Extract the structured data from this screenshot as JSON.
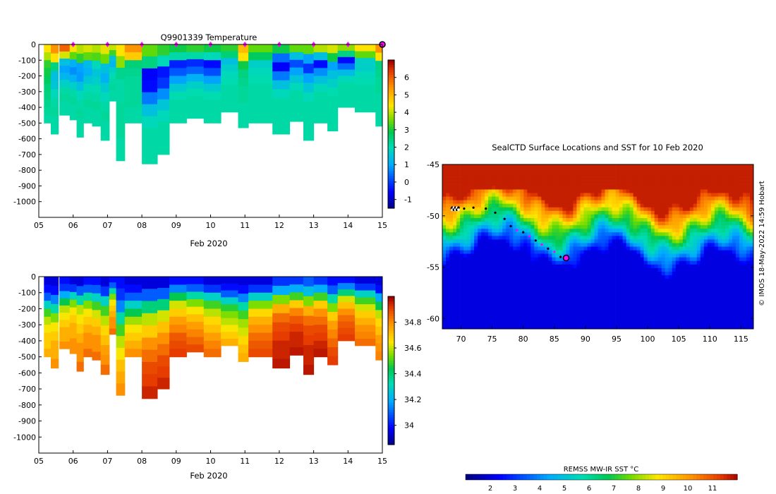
{
  "chart_data": [
    {
      "type": "heatmap",
      "title": "Q9901339  Temperature",
      "xlabel": "Feb 2020",
      "ylabel": "",
      "x_ticks": [
        "05",
        "06",
        "07",
        "08",
        "09",
        "10",
        "11",
        "12",
        "13",
        "14",
        "15"
      ],
      "xlim": [
        5,
        15
      ],
      "y_ticks": [
        0,
        -100,
        -200,
        -300,
        -400,
        -500,
        -600,
        -700,
        -800,
        -900,
        -1000
      ],
      "ylim": [
        -1100,
        0
      ],
      "colorbar": {
        "ticks": [
          -1,
          0,
          1,
          2,
          3,
          4,
          5,
          6
        ],
        "range": [
          -1.5,
          7
        ]
      },
      "profiles": [
        {
          "x": 5.15,
          "w": 0.22,
          "depth": 500,
          "temps": [
            4.5,
            4.0,
            3.2,
            3.0,
            2.8,
            2.6,
            2.5,
            2.4,
            2.3,
            2.2
          ]
        },
        {
          "x": 5.35,
          "w": 0.22,
          "depth": 570,
          "temps": [
            5.5,
            4.5,
            2.5,
            1.5,
            1.6,
            2.0,
            2.2,
            2.3,
            2.2,
            2.2
          ]
        },
        {
          "x": 5.6,
          "w": 0.3,
          "depth": 450,
          "temps": [
            6.0,
            4.2,
            1.5,
            1.0,
            1.3,
            1.8,
            2.2,
            2.3,
            2.2,
            2.2
          ]
        },
        {
          "x": 5.9,
          "w": 0.25,
          "depth": 480,
          "temps": [
            4.5,
            3.5,
            1.2,
            0.8,
            1.2,
            1.8,
            2.2,
            2.3,
            2.2,
            2.2
          ]
        },
        {
          "x": 6.1,
          "w": 0.2,
          "depth": 590,
          "temps": [
            4.0,
            3.2,
            1.0,
            0.9,
            1.5,
            2.0,
            2.2,
            2.3,
            2.2,
            2.2
          ]
        },
        {
          "x": 6.3,
          "w": 0.25,
          "depth": 500,
          "temps": [
            4.2,
            3.5,
            1.4,
            1.2,
            1.6,
            2.0,
            2.2,
            2.3,
            2.2,
            2.2
          ]
        },
        {
          "x": 6.55,
          "w": 0.25,
          "depth": 520,
          "temps": [
            4.0,
            3.4,
            2.0,
            1.6,
            1.8,
            2.1,
            2.2,
            2.3,
            2.2,
            2.2
          ]
        },
        {
          "x": 6.8,
          "w": 0.25,
          "depth": 610,
          "temps": [
            4.3,
            3.6,
            1.5,
            1.2,
            1.7,
            2.0,
            2.2,
            2.3,
            2.2,
            2.2
          ]
        },
        {
          "x": 7.05,
          "w": 0.2,
          "depth": 360,
          "temps": [
            4.1,
            3.3,
            1.5,
            1.3,
            1.8,
            2.1,
            2.2,
            2.3,
            2.2,
            2.2
          ]
        },
        {
          "x": 7.25,
          "w": 0.25,
          "depth": 740,
          "temps": [
            4.5,
            3.8,
            2.4,
            2.2,
            2.2,
            2.3,
            2.3,
            2.3,
            2.2,
            2.2
          ]
        },
        {
          "x": 7.5,
          "w": 0.5,
          "depth": 500,
          "temps": [
            5.5,
            4.8,
            2.6,
            2.4,
            2.3,
            2.3,
            2.3,
            2.3,
            2.2,
            2.2
          ]
        },
        {
          "x": 8.0,
          "w": 0.45,
          "depth": 760,
          "temps": [
            3.5,
            2.5,
            -0.5,
            -0.4,
            0.6,
            1.5,
            2.0,
            2.2,
            2.2,
            2.2
          ]
        },
        {
          "x": 8.45,
          "w": 0.35,
          "depth": 700,
          "temps": [
            3.2,
            2.0,
            -0.3,
            0.0,
            0.8,
            1.6,
            2.0,
            2.2,
            2.2,
            2.2
          ]
        },
        {
          "x": 8.8,
          "w": 0.5,
          "depth": 500,
          "temps": [
            3.0,
            2.2,
            -0.2,
            0.3,
            1.0,
            1.7,
            2.1,
            2.2,
            2.2,
            2.2
          ]
        },
        {
          "x": 9.3,
          "w": 0.5,
          "depth": 470,
          "temps": [
            3.2,
            2.2,
            -0.1,
            0.4,
            1.2,
            1.8,
            2.1,
            2.2,
            2.2,
            2.2
          ]
        },
        {
          "x": 9.8,
          "w": 0.5,
          "depth": 500,
          "temps": [
            3.0,
            2.0,
            -0.4,
            0.2,
            1.0,
            1.7,
            2.1,
            2.2,
            2.2,
            2.2
          ]
        },
        {
          "x": 10.3,
          "w": 0.5,
          "depth": 430,
          "temps": [
            3.2,
            2.6,
            1.5,
            1.8,
            2.0,
            2.1,
            2.2,
            2.2,
            2.2,
            2.2
          ]
        },
        {
          "x": 10.8,
          "w": 0.3,
          "depth": 530,
          "temps": [
            5.0,
            4.5,
            3.0,
            2.5,
            2.4,
            2.3,
            2.3,
            2.2,
            2.2,
            2.2
          ]
        },
        {
          "x": 11.1,
          "w": 0.7,
          "depth": 500,
          "temps": [
            3.5,
            2.8,
            1.8,
            2.0,
            2.1,
            2.2,
            2.2,
            2.2,
            2.2,
            2.2
          ]
        },
        {
          "x": 11.8,
          "w": 0.5,
          "depth": 570,
          "temps": [
            3.0,
            0.5,
            -0.5,
            0.6,
            1.5,
            2.0,
            2.2,
            2.2,
            2.2,
            2.2
          ]
        },
        {
          "x": 12.3,
          "w": 0.4,
          "depth": 490,
          "temps": [
            3.5,
            1.5,
            0.2,
            1.0,
            1.6,
            2.0,
            2.2,
            2.2,
            2.2,
            2.2
          ]
        },
        {
          "x": 12.7,
          "w": 0.3,
          "depth": 610,
          "temps": [
            3.5,
            1.0,
            0.0,
            1.0,
            1.6,
            2.0,
            2.2,
            2.2,
            2.2,
            2.2
          ]
        },
        {
          "x": 13.0,
          "w": 0.4,
          "depth": 500,
          "temps": [
            4.0,
            1.5,
            -0.4,
            0.8,
            1.5,
            2.0,
            2.2,
            2.2,
            2.2,
            2.2
          ]
        },
        {
          "x": 13.4,
          "w": 0.3,
          "depth": 550,
          "temps": [
            4.2,
            3.0,
            1.0,
            1.5,
            1.8,
            2.1,
            2.2,
            2.2,
            2.2,
            2.2
          ]
        },
        {
          "x": 13.7,
          "w": 0.5,
          "depth": 400,
          "temps": [
            3.8,
            2.5,
            -0.4,
            0.5,
            1.4,
            2.0,
            2.2,
            2.2,
            2.2,
            2.2
          ]
        },
        {
          "x": 14.2,
          "w": 0.6,
          "depth": 430,
          "temps": [
            4.5,
            3.5,
            1.8,
            1.8,
            2.0,
            2.1,
            2.2,
            2.2,
            2.2,
            2.2
          ]
        },
        {
          "x": 14.8,
          "w": 0.2,
          "depth": 520,
          "temps": [
            5.5,
            4.5,
            2.5,
            2.4,
            2.3,
            2.3,
            2.2,
            2.2,
            2.2,
            2.2
          ]
        }
      ],
      "markers_x": [
        6,
        7,
        8,
        9,
        10,
        11,
        12,
        13,
        14
      ]
    },
    {
      "type": "heatmap",
      "title": "",
      "xlabel": "Feb 2020",
      "ylabel": "",
      "x_ticks": [
        "05",
        "06",
        "07",
        "08",
        "09",
        "10",
        "11",
        "12",
        "13",
        "14",
        "15"
      ],
      "xlim": [
        5,
        15
      ],
      "y_ticks": [
        0,
        -100,
        -200,
        -300,
        -400,
        -500,
        -600,
        -700,
        -800,
        -900,
        -1000
      ],
      "ylim": [
        -1100,
        0
      ],
      "colorbar": {
        "ticks": [
          34,
          34.2,
          34.4,
          34.6,
          34.8
        ],
        "range": [
          33.85,
          35.0
        ]
      },
      "profiles": [
        {
          "x": 5.15,
          "w": 0.22,
          "depth": 500,
          "temps": [
            33.95,
            34.0,
            34.1,
            34.3,
            34.5,
            34.6,
            34.65,
            34.7,
            34.7,
            34.75
          ]
        },
        {
          "x": 5.35,
          "w": 0.22,
          "depth": 570,
          "temps": [
            33.95,
            34.0,
            34.15,
            34.35,
            34.55,
            34.65,
            34.7,
            34.75,
            34.75,
            34.8
          ]
        },
        {
          "x": 5.6,
          "w": 0.3,
          "depth": 450,
          "temps": [
            34.0,
            34.05,
            34.2,
            34.45,
            34.6,
            34.65,
            34.7,
            34.75,
            34.75,
            34.8
          ]
        },
        {
          "x": 5.9,
          "w": 0.25,
          "depth": 480,
          "temps": [
            33.95,
            34.05,
            34.3,
            34.55,
            34.65,
            34.7,
            34.75,
            34.75,
            34.8,
            34.8
          ]
        },
        {
          "x": 6.1,
          "w": 0.2,
          "depth": 590,
          "temps": [
            33.95,
            34.1,
            34.35,
            34.6,
            34.65,
            34.7,
            34.75,
            34.8,
            34.8,
            34.85
          ]
        },
        {
          "x": 6.3,
          "w": 0.25,
          "depth": 500,
          "temps": [
            34.0,
            34.1,
            34.35,
            34.55,
            34.65,
            34.7,
            34.75,
            34.8,
            34.8,
            34.85
          ]
        },
        {
          "x": 6.55,
          "w": 0.25,
          "depth": 520,
          "temps": [
            34.0,
            34.1,
            34.3,
            34.5,
            34.62,
            34.7,
            34.75,
            34.8,
            34.8,
            34.85
          ]
        },
        {
          "x": 6.8,
          "w": 0.25,
          "depth": 610,
          "temps": [
            33.95,
            34.05,
            34.3,
            34.5,
            34.6,
            34.68,
            34.72,
            34.78,
            34.8,
            34.85
          ]
        },
        {
          "x": 7.05,
          "w": 0.2,
          "depth": 360,
          "temps": [
            34.0,
            34.1,
            34.35,
            34.55,
            34.65,
            34.7,
            34.75,
            34.8,
            34.8,
            34.85
          ]
        },
        {
          "x": 7.25,
          "w": 0.25,
          "depth": 740,
          "temps": [
            34.0,
            34.05,
            34.15,
            34.35,
            34.5,
            34.6,
            34.65,
            34.72,
            34.76,
            34.8
          ]
        },
        {
          "x": 7.5,
          "w": 0.5,
          "depth": 500,
          "temps": [
            33.95,
            34.0,
            34.1,
            34.3,
            34.45,
            34.58,
            34.65,
            34.7,
            34.75,
            34.8
          ]
        },
        {
          "x": 8.0,
          "w": 0.45,
          "depth": 760,
          "temps": [
            33.95,
            34.1,
            34.4,
            34.6,
            34.7,
            34.8,
            34.85,
            34.9,
            34.92,
            34.95
          ]
        },
        {
          "x": 8.45,
          "w": 0.35,
          "depth": 700,
          "temps": [
            33.95,
            34.1,
            34.4,
            34.62,
            34.72,
            34.8,
            34.85,
            34.9,
            34.92,
            34.95
          ]
        },
        {
          "x": 8.8,
          "w": 0.5,
          "depth": 500,
          "temps": [
            34.0,
            34.15,
            34.45,
            34.62,
            34.7,
            34.78,
            34.82,
            34.88,
            34.9,
            34.92
          ]
        },
        {
          "x": 9.3,
          "w": 0.5,
          "depth": 470,
          "temps": [
            34.0,
            34.1,
            34.35,
            34.55,
            34.65,
            34.72,
            34.78,
            34.82,
            34.86,
            34.9
          ]
        },
        {
          "x": 9.8,
          "w": 0.5,
          "depth": 500,
          "temps": [
            33.95,
            34.05,
            34.3,
            34.5,
            34.6,
            34.68,
            34.72,
            34.78,
            34.82,
            34.85
          ]
        },
        {
          "x": 10.3,
          "w": 0.5,
          "depth": 430,
          "temps": [
            33.95,
            34.0,
            34.1,
            34.3,
            34.48,
            34.55,
            34.6,
            34.65,
            34.7,
            34.75
          ]
        },
        {
          "x": 10.8,
          "w": 0.3,
          "depth": 530,
          "temps": [
            33.95,
            34.0,
            34.15,
            34.35,
            34.5,
            34.58,
            34.62,
            34.68,
            34.72,
            34.75
          ]
        },
        {
          "x": 11.1,
          "w": 0.7,
          "depth": 500,
          "temps": [
            33.95,
            34.05,
            34.3,
            34.55,
            34.68,
            34.75,
            34.8,
            34.85,
            34.88,
            34.9
          ]
        },
        {
          "x": 11.8,
          "w": 0.5,
          "depth": 570,
          "temps": [
            34.05,
            34.2,
            34.55,
            34.75,
            34.85,
            34.9,
            34.92,
            34.95,
            34.95,
            34.97
          ]
        },
        {
          "x": 12.3,
          "w": 0.4,
          "depth": 490,
          "temps": [
            34.05,
            34.2,
            34.5,
            34.7,
            34.82,
            34.88,
            34.92,
            34.95,
            34.95,
            34.97
          ]
        },
        {
          "x": 12.7,
          "w": 0.3,
          "depth": 610,
          "temps": [
            34.1,
            34.25,
            34.55,
            34.75,
            34.85,
            34.9,
            34.92,
            34.95,
            34.95,
            34.97
          ]
        },
        {
          "x": 13.0,
          "w": 0.4,
          "depth": 500,
          "temps": [
            34.05,
            34.2,
            34.5,
            34.7,
            34.8,
            34.85,
            34.9,
            34.92,
            34.95,
            34.97
          ]
        },
        {
          "x": 13.4,
          "w": 0.3,
          "depth": 550,
          "temps": [
            34.0,
            34.1,
            34.35,
            34.55,
            34.7,
            34.78,
            34.82,
            34.86,
            34.9,
            34.92
          ]
        },
        {
          "x": 13.7,
          "w": 0.5,
          "depth": 400,
          "temps": [
            34.0,
            34.15,
            34.4,
            34.62,
            34.72,
            34.8,
            34.85,
            34.88,
            34.9,
            34.92
          ]
        },
        {
          "x": 14.2,
          "w": 0.6,
          "depth": 430,
          "temps": [
            33.95,
            34.05,
            34.3,
            34.5,
            34.62,
            34.7,
            34.75,
            34.8,
            34.82,
            34.85
          ]
        },
        {
          "x": 14.8,
          "w": 0.2,
          "depth": 520,
          "temps": [
            33.95,
            34.0,
            34.2,
            34.45,
            34.6,
            34.68,
            34.72,
            34.78,
            34.8,
            34.82
          ]
        }
      ]
    },
    {
      "type": "heatmap",
      "title": "SealCTD Surface Locations and SST for 10 Feb 2020",
      "xlabel": "",
      "ylabel": "",
      "x_ticks": [
        70,
        75,
        80,
        85,
        90,
        95,
        100,
        105,
        110,
        115
      ],
      "xlim": [
        67,
        117
      ],
      "y_ticks": [
        -45,
        -50,
        -55,
        -60
      ],
      "ylim": [
        -61,
        -45
      ],
      "colorbar": {
        "label": "REMSS MW-IR SST °C",
        "ticks": [
          2,
          3,
          4,
          5,
          6,
          7,
          8,
          9,
          10,
          11
        ],
        "range": [
          1,
          12
        ]
      },
      "track": [
        [
          68.5,
          -49.3
        ],
        [
          69.5,
          -49.4
        ],
        [
          70.5,
          -49.3
        ],
        [
          72,
          -49.2
        ],
        [
          74,
          -49.3
        ],
        [
          75.5,
          -49.7
        ],
        [
          77,
          -50.3
        ],
        [
          78,
          -51
        ],
        [
          79,
          -51.4
        ],
        [
          80,
          -51.6
        ],
        [
          81,
          -52
        ],
        [
          82,
          -52.4
        ],
        [
          83,
          -52.8
        ],
        [
          84,
          -53.2
        ],
        [
          85,
          -53.5
        ],
        [
          86,
          -54.0
        ],
        [
          86.9,
          -54.1
        ]
      ],
      "last_fix": [
        86.9,
        -54.1
      ],
      "credit": "© IMOS 18-May-2022 14:59 Hobart"
    }
  ]
}
